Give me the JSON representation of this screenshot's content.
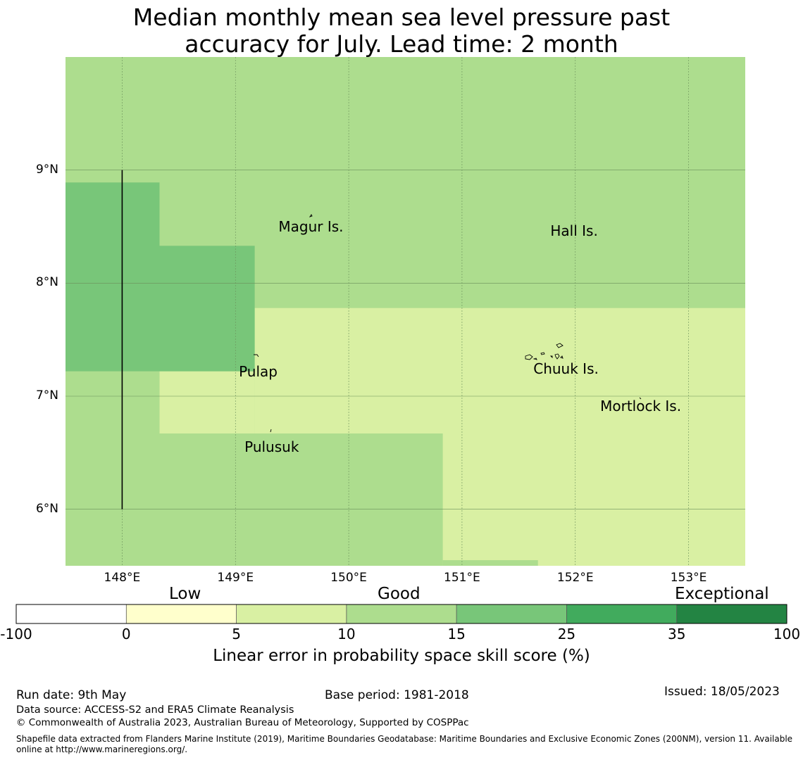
{
  "title": {
    "line1": "Median monthly mean sea level pressure past",
    "line2": "accuracy for July. Lead time: 2 month"
  },
  "map": {
    "lon_range": [
      147.5,
      153.5
    ],
    "lat_range": [
      5.5,
      10.0
    ],
    "lat_ticks": [
      {
        "value": 9,
        "label": "9°N"
      },
      {
        "value": 8,
        "label": "8°N"
      },
      {
        "value": 7,
        "label": "7°N"
      },
      {
        "value": 6,
        "label": "6°N"
      }
    ],
    "lon_ticks": [
      {
        "value": 148,
        "label": "148°E"
      },
      {
        "value": 149,
        "label": "149°E"
      },
      {
        "value": 150,
        "label": "150°E"
      },
      {
        "value": 151,
        "label": "151°E"
      },
      {
        "value": 152,
        "label": "152°E"
      },
      {
        "value": 153,
        "label": "153°E"
      }
    ],
    "places": [
      {
        "name": "Magur Is.",
        "lon": 149.38,
        "lat": 8.5
      },
      {
        "name": "Hall Is.",
        "lon": 151.78,
        "lat": 8.46
      },
      {
        "name": "Pulap",
        "lon": 149.03,
        "lat": 7.22
      },
      {
        "name": "Chuuk Is.",
        "lon": 151.63,
        "lat": 7.24
      },
      {
        "name": "Mortlock Is.",
        "lon": 152.22,
        "lat": 6.91
      },
      {
        "name": "Pulusuk",
        "lon": 149.08,
        "lat": 6.55
      }
    ],
    "boundary_line": {
      "lon": 148.0,
      "lat_from": 6.0,
      "lat_to": 9.0
    },
    "skill_cells": [
      {
        "category": "10-15",
        "lon": [
          147.5,
          153.5
        ],
        "lat": [
          5.5,
          10.0
        ]
      },
      {
        "category": "5-10",
        "lon": [
          149.17,
          153.5
        ],
        "lat": [
          5.5,
          7.78
        ]
      },
      {
        "category": "5-10",
        "lon": [
          148.33,
          149.17
        ],
        "lat": [
          6.67,
          7.22
        ]
      },
      {
        "category": "10-15",
        "lon": [
          147.5,
          150.83
        ],
        "lat": [
          5.5,
          6.67
        ]
      },
      {
        "category": "10-15",
        "lon": [
          150.83,
          151.67
        ],
        "lat": [
          5.5,
          5.55
        ]
      },
      {
        "category": "15-25",
        "lon": [
          147.5,
          148.33
        ],
        "lat": [
          7.22,
          8.89
        ]
      },
      {
        "category": "15-25",
        "lon": [
          148.33,
          149.17
        ],
        "lat": [
          7.22,
          8.33
        ]
      }
    ]
  },
  "colorbar": {
    "categories": [
      "Low",
      "Good",
      "Exceptional"
    ],
    "bins": [
      {
        "range": "-100-0",
        "color": "#ffffff"
      },
      {
        "range": "0-5",
        "color": "#ffffcc"
      },
      {
        "range": "5-10",
        "color": "#d9f0a3"
      },
      {
        "range": "10-15",
        "color": "#addd8e"
      },
      {
        "range": "15-25",
        "color": "#78c679"
      },
      {
        "range": "25-35",
        "color": "#41ab5d"
      },
      {
        "range": "35-100",
        "color": "#238443"
      }
    ],
    "ticks": [
      "-100",
      "0",
      "5",
      "10",
      "15",
      "25",
      "35",
      "100"
    ],
    "label": "Linear error in probability space skill score (%)"
  },
  "footer": {
    "run_date": "Run date: 9th May",
    "base_period": "Base period: 1981-2018",
    "issued": "Issued: 18/05/2023",
    "data_source": "Data source: ACCESS-S2 and ERA5 Climate Reanalysis",
    "copyright": "© Commonwealth of Australia 2023, Australian Bureau of Meteorology, Supported by COSPPac",
    "shapefile": "Shapefile data extracted from Flanders Marine Institute (2019), Maritime Boundaries Geodatabase: Maritime Boundaries and Exclusive Economic Zones (200NM), version 11. Available online at http://www.marineregions.org/."
  }
}
